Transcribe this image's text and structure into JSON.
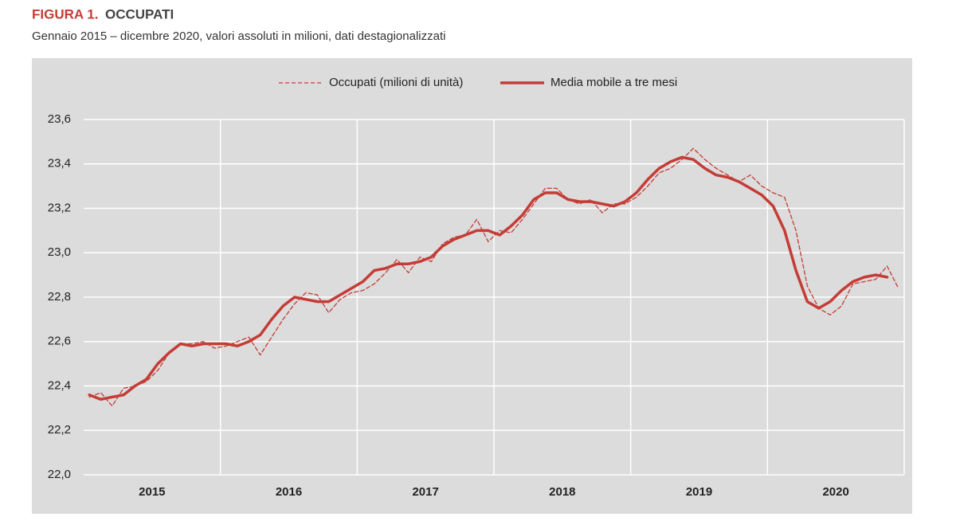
{
  "chart_data": {
    "type": "line",
    "figure_label": "FIGURA 1.",
    "title": "OCCUPATI",
    "subtitle": "Gennaio 2015 – dicembre 2020, valori assoluti in milioni, dati destagionalizzati",
    "categories": [
      null,
      null,
      null,
      null,
      null,
      null,
      "2015",
      null,
      null,
      null,
      null,
      null,
      null,
      null,
      null,
      null,
      null,
      null,
      "2016",
      null,
      null,
      null,
      null,
      null,
      null,
      null,
      null,
      null,
      null,
      null,
      "2017",
      null,
      null,
      null,
      null,
      null,
      null,
      null,
      null,
      null,
      null,
      null,
      "2018",
      null,
      null,
      null,
      null,
      null,
      null,
      null,
      null,
      null,
      null,
      null,
      "2019",
      null,
      null,
      null,
      null,
      null,
      null,
      null,
      null,
      null,
      null,
      null,
      "2020",
      null,
      null,
      null,
      null,
      null
    ],
    "series": [
      {
        "name": "Occupati (milioni di unità)",
        "color": "#c43c36",
        "line_style": "dashed",
        "values": [
          22.35,
          22.37,
          22.31,
          22.39,
          22.4,
          22.42,
          22.47,
          22.55,
          22.59,
          22.59,
          22.6,
          22.57,
          22.58,
          22.6,
          22.62,
          22.54,
          22.62,
          22.7,
          22.77,
          22.82,
          22.81,
          22.73,
          22.79,
          22.82,
          22.83,
          22.86,
          22.91,
          22.97,
          22.91,
          22.98,
          22.96,
          23.04,
          23.07,
          23.08,
          23.15,
          23.05,
          23.1,
          23.09,
          23.15,
          23.22,
          23.29,
          23.29,
          23.24,
          23.22,
          23.24,
          23.18,
          23.22,
          23.22,
          23.25,
          23.3,
          23.36,
          23.38,
          23.42,
          23.47,
          23.42,
          23.38,
          23.35,
          23.32,
          23.35,
          23.3,
          23.27,
          23.25,
          23.1,
          22.85,
          22.75,
          22.72,
          22.76,
          22.86,
          22.87,
          22.88,
          22.94,
          22.84
        ]
      },
      {
        "name": "Media mobile a tre mesi",
        "color": "#c43c36",
        "line_style": "solid",
        "values": [
          22.36,
          22.34,
          22.35,
          22.36,
          22.4,
          22.43,
          22.5,
          22.55,
          22.59,
          22.58,
          22.59,
          22.59,
          22.59,
          22.58,
          22.6,
          22.63,
          22.7,
          22.76,
          22.8,
          22.79,
          22.78,
          22.78,
          22.81,
          22.84,
          22.87,
          22.92,
          22.93,
          22.95,
          22.95,
          22.96,
          22.98,
          23.03,
          23.06,
          23.08,
          23.1,
          23.1,
          23.08,
          23.12,
          23.17,
          23.24,
          23.27,
          23.27,
          23.24,
          23.23,
          23.23,
          23.22,
          23.21,
          23.23,
          23.27,
          23.33,
          23.38,
          23.41,
          23.43,
          23.42,
          23.38,
          23.35,
          23.34,
          23.32,
          23.29,
          23.26,
          23.21,
          23.1,
          22.92,
          22.78,
          22.75,
          22.78,
          22.83,
          22.87,
          22.89,
          22.9,
          22.89,
          null
        ]
      }
    ],
    "ylim": [
      22.0,
      23.6
    ],
    "yticks": [
      {
        "value": 22.0,
        "label": "22,0"
      },
      {
        "value": 22.2,
        "label": "22,2"
      },
      {
        "value": 22.4,
        "label": "22,4"
      },
      {
        "value": 22.6,
        "label": "22,6"
      },
      {
        "value": 22.8,
        "label": "22,8"
      },
      {
        "value": 23.0,
        "label": "23,0"
      },
      {
        "value": 23.2,
        "label": "23,2"
      },
      {
        "value": 23.4,
        "label": "23,4"
      },
      {
        "value": 23.6,
        "label": "23,6"
      }
    ],
    "grid": true,
    "legend": "top"
  }
}
